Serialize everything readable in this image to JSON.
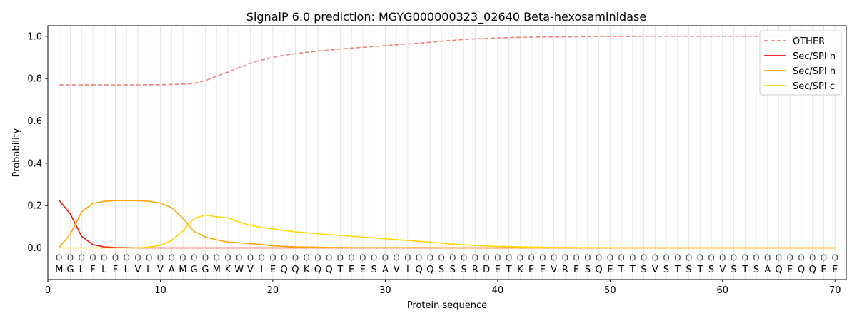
{
  "chart_data": {
    "type": "line",
    "title": "SignalP 6.0 prediction: MGYG000000323_02640 Beta-hexosaminidase",
    "xlabel": "Protein sequence",
    "ylabel": "Probability",
    "xlim": [
      0,
      71
    ],
    "ylim": [
      -0.15,
      1.05
    ],
    "xticks": [
      0,
      10,
      20,
      30,
      40,
      50,
      60,
      70
    ],
    "yticks": [
      0.0,
      0.2,
      0.4,
      0.6,
      0.8,
      1.0
    ],
    "grid": "vertical lines at each residue",
    "legend": "top-right",
    "sequence": [
      "M",
      "G",
      "L",
      "F",
      "L",
      "F",
      "L",
      "V",
      "L",
      "V",
      "A",
      "M",
      "G",
      "G",
      "M",
      "K",
      "W",
      "V",
      "I",
      "E",
      "Q",
      "Q",
      "K",
      "Q",
      "Q",
      "T",
      "E",
      "E",
      "S",
      "A",
      "V",
      "I",
      "Q",
      "Q",
      "S",
      "S",
      "S",
      "R",
      "D",
      "E",
      "T",
      "K",
      "E",
      "E",
      "V",
      "R",
      "E",
      "S",
      "Q",
      "E",
      "T",
      "T",
      "S",
      "V",
      "S",
      "T",
      "S",
      "T",
      "S",
      "V",
      "S",
      "T",
      "S",
      "A",
      "Q",
      "E",
      "Q",
      "Q",
      "E",
      "E"
    ],
    "sequence_mark": "O",
    "x": [
      1,
      2,
      3,
      4,
      5,
      6,
      7,
      8,
      9,
      10,
      11,
      12,
      13,
      14,
      15,
      16,
      17,
      18,
      19,
      20,
      21,
      22,
      23,
      24,
      25,
      26,
      27,
      28,
      29,
      30,
      31,
      32,
      33,
      34,
      35,
      36,
      37,
      38,
      39,
      40,
      41,
      42,
      43,
      44,
      45,
      46,
      47,
      48,
      49,
      50,
      51,
      52,
      53,
      54,
      55,
      56,
      57,
      58,
      59,
      60,
      61,
      62,
      63,
      64,
      65,
      66,
      67,
      68,
      69,
      70
    ],
    "series": [
      {
        "name": "OTHER",
        "color": "#f08080",
        "dash": "dashed",
        "values": [
          0.77,
          0.77,
          0.77,
          0.77,
          0.77,
          0.77,
          0.77,
          0.77,
          0.771,
          0.771,
          0.772,
          0.774,
          0.777,
          0.79,
          0.812,
          0.83,
          0.852,
          0.872,
          0.888,
          0.9,
          0.91,
          0.918,
          0.924,
          0.93,
          0.935,
          0.94,
          0.944,
          0.948,
          0.952,
          0.956,
          0.96,
          0.964,
          0.968,
          0.972,
          0.977,
          0.981,
          0.985,
          0.988,
          0.99,
          0.992,
          0.994,
          0.995,
          0.996,
          0.997,
          0.997,
          0.998,
          0.998,
          0.999,
          0.999,
          0.999,
          0.999,
          0.999,
          1.0,
          1.0,
          1.0,
          1.0,
          1.0,
          1.0,
          1.0,
          1.0,
          1.0,
          1.0,
          1.0,
          1.0,
          1.0,
          1.0,
          1.0,
          1.0,
          1.0,
          1.0
        ]
      },
      {
        "name": "Sec/SPI n",
        "color": "#ee1111",
        "dash": "solid",
        "values": [
          0.225,
          0.16,
          0.055,
          0.015,
          0.005,
          0.002,
          0.001,
          0.0,
          0.0,
          0.0,
          0.0,
          0.0,
          0.0,
          0.0,
          0.0,
          0.0,
          0.0,
          0.0,
          0.0,
          0.0,
          0.0,
          0.0,
          0.0,
          0.0,
          0.0,
          0.0,
          0.0,
          0.0,
          0.0,
          0.0,
          0.0,
          0.0,
          0.0,
          0.0,
          0.0,
          0.0,
          0.0,
          0.0,
          0.0,
          0.0,
          0.0,
          0.0,
          0.0,
          0.0,
          0.0,
          0.0,
          0.0,
          0.0,
          0.0,
          0.0,
          0.0,
          0.0,
          0.0,
          0.0,
          0.0,
          0.0,
          0.0,
          0.0,
          0.0,
          0.0,
          0.0,
          0.0,
          0.0,
          0.0,
          0.0,
          0.0,
          0.0,
          0.0,
          0.0,
          0.0
        ]
      },
      {
        "name": "Sec/SPI h",
        "color": "#ffa500",
        "dash": "solid",
        "values": [
          0.002,
          0.065,
          0.17,
          0.21,
          0.22,
          0.223,
          0.224,
          0.223,
          0.22,
          0.212,
          0.19,
          0.14,
          0.078,
          0.052,
          0.038,
          0.028,
          0.024,
          0.02,
          0.016,
          0.01,
          0.007,
          0.005,
          0.004,
          0.003,
          0.002,
          0.002,
          0.001,
          0.001,
          0.001,
          0.001,
          0.001,
          0.001,
          0.001,
          0.001,
          0.0,
          0.0,
          0.0,
          0.0,
          0.0,
          0.0,
          0.0,
          0.0,
          0.0,
          0.0,
          0.0,
          0.0,
          0.0,
          0.0,
          0.0,
          0.0,
          0.0,
          0.0,
          0.0,
          0.0,
          0.0,
          0.0,
          0.0,
          0.0,
          0.0,
          0.0,
          0.0,
          0.0,
          0.0,
          0.0,
          0.0,
          0.0,
          0.0,
          0.0,
          0.0,
          0.0
        ]
      },
      {
        "name": "Sec/SPI c",
        "color": "#ffd700",
        "dash": "solid",
        "values": [
          0.0,
          0.0,
          0.0,
          0.0,
          0.0,
          0.0,
          0.0,
          0.0,
          0.004,
          0.012,
          0.035,
          0.08,
          0.14,
          0.155,
          0.147,
          0.142,
          0.122,
          0.107,
          0.096,
          0.09,
          0.082,
          0.076,
          0.071,
          0.067,
          0.063,
          0.059,
          0.055,
          0.051,
          0.047,
          0.043,
          0.039,
          0.035,
          0.031,
          0.027,
          0.022,
          0.018,
          0.014,
          0.011,
          0.009,
          0.007,
          0.006,
          0.005,
          0.004,
          0.003,
          0.002,
          0.002,
          0.001,
          0.001,
          0.001,
          0.001,
          0.0,
          0.0,
          0.0,
          0.0,
          0.0,
          0.0,
          0.0,
          0.0,
          0.0,
          0.0,
          0.0,
          0.0,
          0.0,
          0.0,
          0.0,
          0.0,
          0.0,
          0.0,
          0.0,
          0.0
        ]
      }
    ]
  }
}
